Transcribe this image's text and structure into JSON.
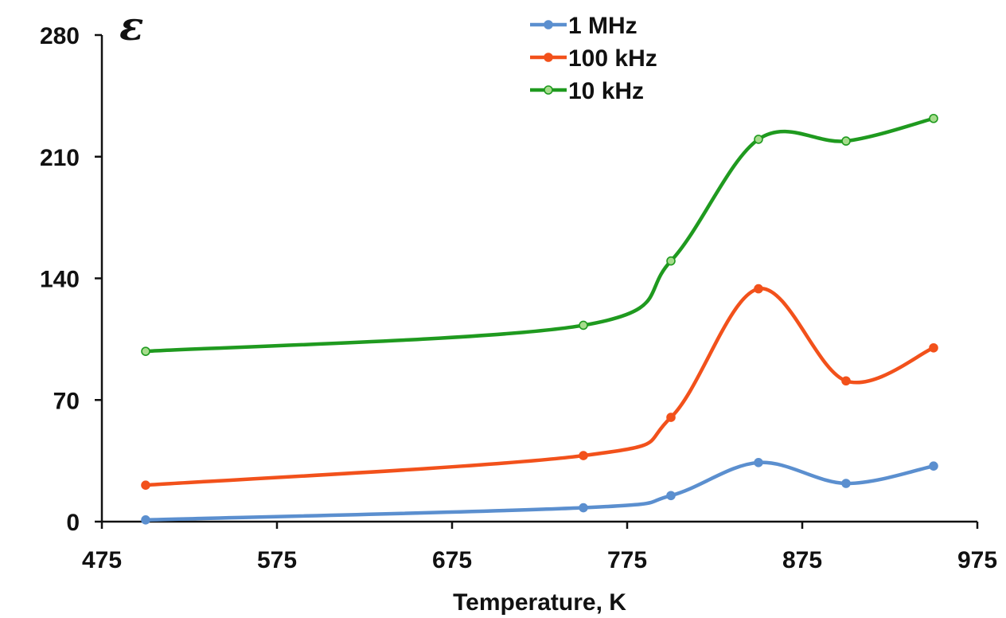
{
  "chart_data": {
    "type": "line",
    "title": "",
    "xlabel": "Temperature, K",
    "ylabel": "ε",
    "xlim": [
      475,
      975
    ],
    "ylim": [
      0,
      280
    ],
    "xticks": [
      475,
      575,
      675,
      775,
      875,
      975
    ],
    "yticks": [
      0,
      70,
      140,
      210,
      280
    ],
    "grid": false,
    "legend_position": "top-center",
    "series": [
      {
        "name": "1 MHz",
        "color": "#5b8fcf",
        "points": [
          [
            500,
            1
          ],
          [
            750,
            8
          ],
          [
            800,
            15
          ],
          [
            850,
            34
          ],
          [
            900,
            22
          ],
          [
            950,
            32
          ]
        ]
      },
      {
        "name": "100 kHz",
        "color": "#f2511b",
        "points": [
          [
            500,
            21
          ],
          [
            750,
            38
          ],
          [
            800,
            60
          ],
          [
            850,
            134
          ],
          [
            900,
            81
          ],
          [
            950,
            100
          ]
        ]
      },
      {
        "name": "10 kHz",
        "color": "#1f9a1f",
        "marker_fill": "#a6dc8c",
        "points": [
          [
            500,
            98
          ],
          [
            750,
            113
          ],
          [
            800,
            150
          ],
          [
            850,
            220
          ],
          [
            900,
            219
          ],
          [
            950,
            232
          ]
        ]
      }
    ]
  }
}
